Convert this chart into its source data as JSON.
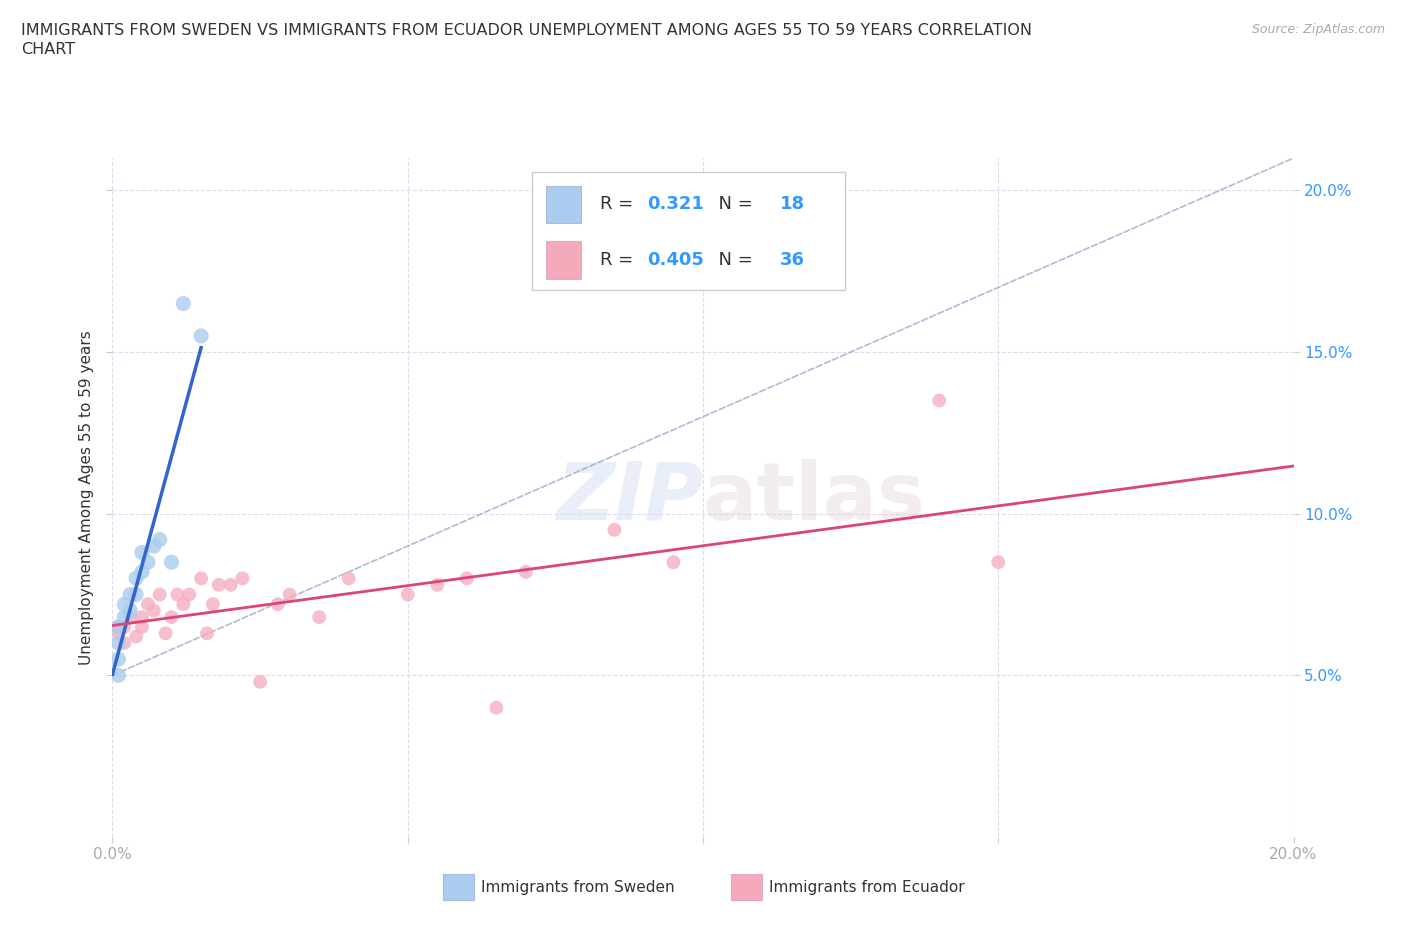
{
  "title_line1": "IMMIGRANTS FROM SWEDEN VS IMMIGRANTS FROM ECUADOR UNEMPLOYMENT AMONG AGES 55 TO 59 YEARS CORRELATION",
  "title_line2": "CHART",
  "source_text": "Source: ZipAtlas.com",
  "ylabel": "Unemployment Among Ages 55 to 59 years",
  "xlim": [
    0.0,
    0.2
  ],
  "ylim": [
    0.0,
    0.21
  ],
  "xticks": [
    0.0,
    0.05,
    0.1,
    0.15,
    0.2
  ],
  "yticks": [
    0.05,
    0.1,
    0.15,
    0.2
  ],
  "sweden_color": "#aaccee",
  "ecuador_color": "#f5aabb",
  "sweden_line_color": "#3366cc",
  "ecuador_line_color": "#dd4477",
  "diagonal_color": "#99aacc",
  "r_sweden": 0.321,
  "n_sweden": 18,
  "r_ecuador": 0.405,
  "n_ecuador": 36,
  "sweden_x": [
    0.001,
    0.001,
    0.001,
    0.001,
    0.002,
    0.002,
    0.003,
    0.003,
    0.004,
    0.004,
    0.005,
    0.005,
    0.006,
    0.007,
    0.008,
    0.01,
    0.012,
    0.015
  ],
  "sweden_y": [
    0.065,
    0.06,
    0.055,
    0.05,
    0.072,
    0.068,
    0.075,
    0.07,
    0.08,
    0.075,
    0.082,
    0.088,
    0.085,
    0.09,
    0.092,
    0.085,
    0.165,
    0.155
  ],
  "ecuador_x": [
    0.001,
    0.001,
    0.002,
    0.002,
    0.003,
    0.004,
    0.005,
    0.005,
    0.006,
    0.007,
    0.008,
    0.009,
    0.01,
    0.011,
    0.012,
    0.013,
    0.015,
    0.016,
    0.017,
    0.018,
    0.02,
    0.022,
    0.025,
    0.028,
    0.03,
    0.035,
    0.04,
    0.05,
    0.06,
    0.07,
    0.085,
    0.095,
    0.14,
    0.15,
    0.055,
    0.065
  ],
  "ecuador_y": [
    0.065,
    0.063,
    0.065,
    0.06,
    0.068,
    0.062,
    0.068,
    0.065,
    0.072,
    0.07,
    0.075,
    0.063,
    0.068,
    0.075,
    0.072,
    0.075,
    0.08,
    0.063,
    0.072,
    0.078,
    0.078,
    0.08,
    0.048,
    0.072,
    0.075,
    0.068,
    0.08,
    0.075,
    0.08,
    0.082,
    0.095,
    0.085,
    0.135,
    0.085,
    0.078,
    0.04
  ],
  "sweden_marker_size": 120,
  "ecuador_marker_size": 100,
  "background_color": "#ffffff",
  "grid_color": "#ddddee",
  "title_color": "#333333",
  "axis_color": "#aaaaaa",
  "legend_r_color": "#3399ff",
  "legend_label_color": "#333333"
}
